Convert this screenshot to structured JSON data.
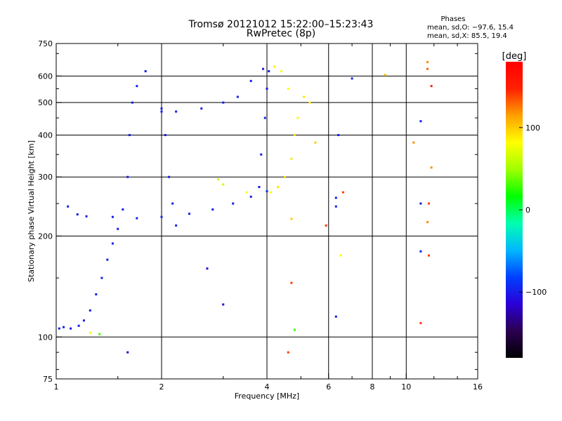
{
  "header": {
    "title_line1": "Tromsø 20121012 15:22:00–15:23:43",
    "title_line2": "RwPretec (8p)"
  },
  "phases_box": {
    "heading": "Phases",
    "o_line": "mean, sd,O: −97.6, 15.4",
    "x_line": "mean, sd,X:  85.5, 19.4"
  },
  "chart_data": {
    "type": "scatter",
    "x_scale": "log",
    "y_scale": "log",
    "xlim": [
      1,
      16
    ],
    "ylim": [
      75,
      750
    ],
    "xlabel": "Frequency [MHz]",
    "ylabel": "Stationary phase Virtual Height [km]",
    "x_ticks": [
      1,
      2,
      4,
      6,
      8,
      10,
      16
    ],
    "x_tick_labels": [
      "1",
      "2",
      "4",
      "6",
      "8",
      "10",
      "16"
    ],
    "x_grid": [
      2,
      4,
      6,
      8,
      10
    ],
    "y_ticks": [
      75,
      100,
      200,
      300,
      400,
      500,
      600,
      750
    ],
    "y_tick_labels": [
      "75",
      "100",
      "200",
      "300",
      "400",
      "500",
      "600",
      "750"
    ],
    "y_grid": [
      100,
      200,
      300,
      400,
      500,
      600
    ],
    "grid": true,
    "colorbar": {
      "label": "[deg]",
      "range": [
        -180,
        180
      ],
      "ticks": [
        100,
        0,
        -100
      ],
      "tick_labels": [
        "100",
        "0",
        "−100"
      ],
      "colors": [
        "#000000",
        "#2b0050",
        "#2a00d8",
        "#0040ff",
        "#00b8ff",
        "#00ffb0",
        "#00ff00",
        "#a0ff00",
        "#ffff00",
        "#ffa000",
        "#ff2000",
        "#ff0000"
      ]
    },
    "series": [
      {
        "values": [
          {
            "f": 1.02,
            "h": 106,
            "phase": -100
          },
          {
            "f": 1.05,
            "h": 107,
            "phase": -100
          },
          {
            "f": 1.1,
            "h": 106,
            "phase": -100
          },
          {
            "f": 1.16,
            "h": 108,
            "phase": -100
          },
          {
            "f": 1.2,
            "h": 112,
            "phase": -100
          },
          {
            "f": 1.25,
            "h": 120,
            "phase": -100
          },
          {
            "f": 1.3,
            "h": 134,
            "phase": -100
          },
          {
            "f": 1.35,
            "h": 150,
            "phase": -100
          },
          {
            "f": 1.4,
            "h": 170,
            "phase": -100
          },
          {
            "f": 1.45,
            "h": 190,
            "phase": -100
          },
          {
            "f": 1.5,
            "h": 210,
            "phase": -100
          },
          {
            "f": 1.55,
            "h": 240,
            "phase": -100
          },
          {
            "f": 1.6,
            "h": 300,
            "phase": -100
          },
          {
            "f": 1.62,
            "h": 400,
            "phase": -100
          },
          {
            "f": 1.65,
            "h": 500,
            "phase": -100
          },
          {
            "f": 1.7,
            "h": 560,
            "phase": -100
          },
          {
            "f": 1.8,
            "h": 620,
            "phase": -100
          },
          {
            "f": 1.08,
            "h": 245,
            "phase": -100
          },
          {
            "f": 1.15,
            "h": 232,
            "phase": -100
          },
          {
            "f": 1.22,
            "h": 229,
            "phase": -100
          },
          {
            "f": 1.45,
            "h": 228,
            "phase": -100
          },
          {
            "f": 1.7,
            "h": 226,
            "phase": -100
          },
          {
            "f": 2.0,
            "h": 228,
            "phase": -100
          },
          {
            "f": 2.4,
            "h": 233,
            "phase": -100
          },
          {
            "f": 2.8,
            "h": 240,
            "phase": -100
          },
          {
            "f": 3.2,
            "h": 250,
            "phase": -100
          },
          {
            "f": 3.6,
            "h": 262,
            "phase": -100
          },
          {
            "f": 4.0,
            "h": 272,
            "phase": -90
          },
          {
            "f": 2.0,
            "h": 470,
            "phase": -100
          },
          {
            "f": 2.2,
            "h": 470,
            "phase": -100
          },
          {
            "f": 2.6,
            "h": 480,
            "phase": -100
          },
          {
            "f": 3.0,
            "h": 500,
            "phase": -100
          },
          {
            "f": 3.3,
            "h": 520,
            "phase": -100
          },
          {
            "f": 3.6,
            "h": 580,
            "phase": -100
          },
          {
            "f": 3.9,
            "h": 630,
            "phase": -100
          },
          {
            "f": 3.8,
            "h": 280,
            "phase": -100
          },
          {
            "f": 3.85,
            "h": 350,
            "phase": -100
          },
          {
            "f": 3.95,
            "h": 450,
            "phase": -100
          },
          {
            "f": 4.0,
            "h": 550,
            "phase": -100
          },
          {
            "f": 4.05,
            "h": 620,
            "phase": -100
          },
          {
            "f": 2.0,
            "h": 480,
            "phase": -100
          },
          {
            "f": 2.05,
            "h": 400,
            "phase": -100
          },
          {
            "f": 2.1,
            "h": 300,
            "phase": -100
          },
          {
            "f": 2.15,
            "h": 250,
            "phase": -100
          },
          {
            "f": 2.2,
            "h": 215,
            "phase": -100
          },
          {
            "f": 1.6,
            "h": 90,
            "phase": -110
          },
          {
            "f": 3.0,
            "h": 125,
            "phase": -110
          },
          {
            "f": 2.7,
            "h": 160,
            "phase": -110
          },
          {
            "f": 6.3,
            "h": 115,
            "phase": -100
          },
          {
            "f": 11.0,
            "h": 250,
            "phase": -100
          },
          {
            "f": 11.0,
            "h": 180,
            "phase": -100
          },
          {
            "f": 6.3,
            "h": 260,
            "phase": -100
          },
          {
            "f": 6.3,
            "h": 245,
            "phase": -100
          },
          {
            "f": 6.4,
            "h": 400,
            "phase": -100
          },
          {
            "f": 7.0,
            "h": 590,
            "phase": -100
          },
          {
            "f": 11.0,
            "h": 440,
            "phase": -100
          }
        ]
      },
      {
        "values": [
          {
            "f": 4.1,
            "h": 270,
            "phase": 85
          },
          {
            "f": 4.3,
            "h": 280,
            "phase": 90
          },
          {
            "f": 4.5,
            "h": 300,
            "phase": 95
          },
          {
            "f": 4.7,
            "h": 340,
            "phase": 90
          },
          {
            "f": 4.8,
            "h": 400,
            "phase": 90
          },
          {
            "f": 4.9,
            "h": 450,
            "phase": 85
          },
          {
            "f": 4.6,
            "h": 550,
            "phase": 80
          },
          {
            "f": 4.4,
            "h": 620,
            "phase": 80
          },
          {
            "f": 4.2,
            "h": 640,
            "phase": 85
          },
          {
            "f": 3.5,
            "h": 270,
            "phase": 80
          },
          {
            "f": 3.0,
            "h": 285,
            "phase": 60
          },
          {
            "f": 2.9,
            "h": 295,
            "phase": 60
          },
          {
            "f": 5.1,
            "h": 520,
            "phase": 90
          },
          {
            "f": 5.3,
            "h": 500,
            "phase": 85
          },
          {
            "f": 4.7,
            "h": 225,
            "phase": 100
          },
          {
            "f": 4.8,
            "h": 105,
            "phase": 30
          },
          {
            "f": 4.7,
            "h": 145,
            "phase": 140
          },
          {
            "f": 4.6,
            "h": 90,
            "phase": 140
          },
          {
            "f": 5.9,
            "h": 215,
            "phase": 140
          },
          {
            "f": 5.5,
            "h": 380,
            "phase": 100
          },
          {
            "f": 6.6,
            "h": 270,
            "phase": 140
          },
          {
            "f": 6.5,
            "h": 175,
            "phase": 80
          },
          {
            "f": 8.7,
            "h": 605,
            "phase": 100
          },
          {
            "f": 10.5,
            "h": 380,
            "phase": 120
          },
          {
            "f": 11.5,
            "h": 660,
            "phase": 120
          },
          {
            "f": 11.5,
            "h": 630,
            "phase": 130
          },
          {
            "f": 11.8,
            "h": 560,
            "phase": 150
          },
          {
            "f": 11.8,
            "h": 320,
            "phase": 120
          },
          {
            "f": 11.6,
            "h": 250,
            "phase": 140
          },
          {
            "f": 11.5,
            "h": 220,
            "phase": 120
          },
          {
            "f": 11.6,
            "h": 175,
            "phase": 140
          },
          {
            "f": 11.0,
            "h": 110,
            "phase": 140
          },
          {
            "f": 1.25,
            "h": 103,
            "phase": 80
          },
          {
            "f": 1.33,
            "h": 102,
            "phase": 30
          }
        ]
      }
    ]
  }
}
